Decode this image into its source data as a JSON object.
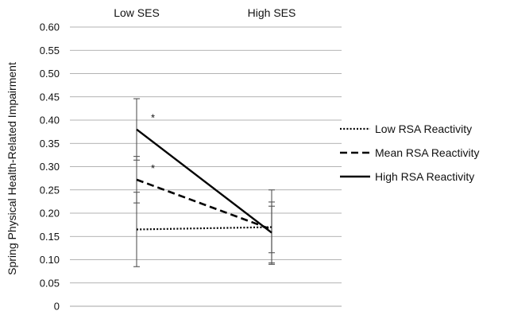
{
  "chart_data": {
    "type": "line",
    "categories": [
      "Low SES",
      "High SES"
    ],
    "ylabel": "Spring Physical Health-Related Impairment",
    "ylim": [
      0,
      0.6
    ],
    "yticks": [
      "0",
      "0.05",
      "0.10",
      "0.15",
      "0.20",
      "0.25",
      "0.30",
      "0.35",
      "0.40",
      "0.45",
      "0.50",
      "0.55",
      "0.60"
    ],
    "grid": true,
    "legend_position": "right",
    "series": [
      {
        "name": "Low RSA Reactivity",
        "style": "dotted",
        "values": [
          0.165,
          0.17
        ],
        "error_low": [
          0.085,
          0.09
        ],
        "error_high": [
          0.245,
          0.25
        ],
        "annotations": [
          "",
          ""
        ]
      },
      {
        "name": "Mean RSA Reactivity",
        "style": "dashed",
        "values": [
          0.272,
          0.165
        ],
        "error_low": [
          0.222,
          0.115
        ],
        "error_high": [
          0.322,
          0.215
        ],
        "annotations": [
          "*",
          ""
        ]
      },
      {
        "name": "High RSA Reactivity",
        "style": "solid",
        "values": [
          0.38,
          0.158
        ],
        "error_low": [
          0.314,
          0.093
        ],
        "error_high": [
          0.446,
          0.224
        ],
        "annotations": [
          "*",
          ""
        ]
      }
    ]
  }
}
